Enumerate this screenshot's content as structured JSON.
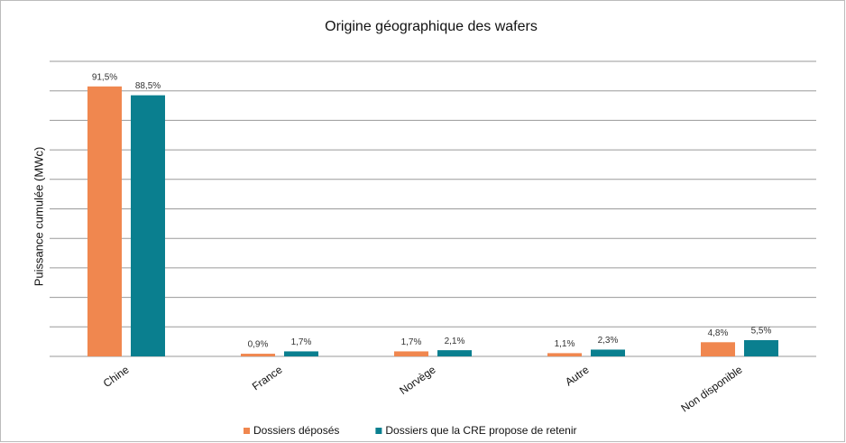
{
  "chart_data": {
    "type": "bar",
    "title": "Origine géographique des wafers",
    "y_label": "Puissance cumulée (MWc)",
    "categories": [
      "Chine",
      "France",
      "Norvège",
      "Autre",
      "Non disponible"
    ],
    "series": [
      {
        "name": "Dossiers déposés",
        "color": "#f0874f",
        "values": [
          91.5,
          0.9,
          1.7,
          1.1,
          4.8
        ],
        "value_labels": [
          "91,5%",
          "0,9%",
          "1,7%",
          "1,1%",
          "4,8%"
        ]
      },
      {
        "name": "Dossiers que la CRE propose de retenir",
        "color": "#0a7f8f",
        "values": [
          88.5,
          1.7,
          2.1,
          2.3,
          5.5
        ],
        "value_labels": [
          "88,5%",
          "1,7%",
          "2,1%",
          "2,3%",
          "5,5%"
        ]
      }
    ],
    "ylim": [
      0,
      100
    ],
    "yticks": [
      0,
      10,
      20,
      30,
      40,
      50,
      60,
      70,
      80,
      90,
      100
    ],
    "grid": true,
    "legend": "bottom"
  }
}
